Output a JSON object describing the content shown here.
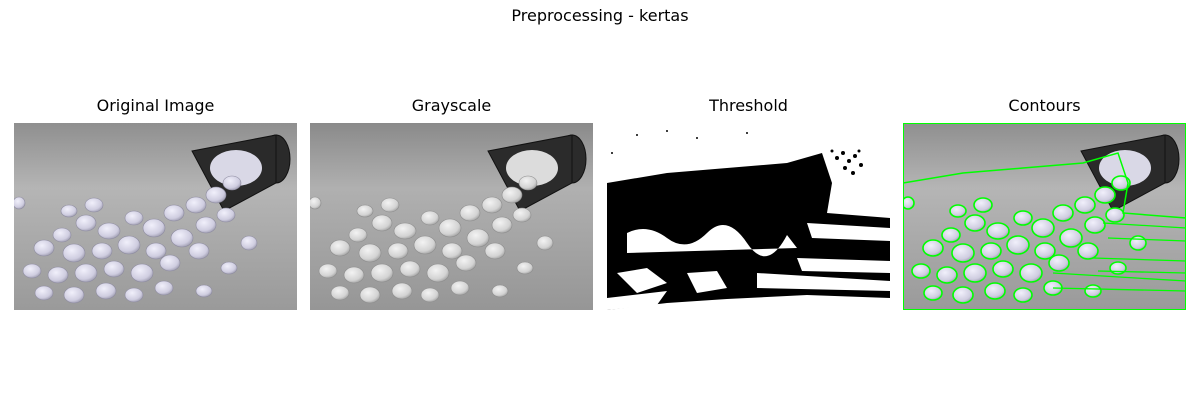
{
  "figure": {
    "title": "Preprocessing - kertas"
  },
  "panels": [
    {
      "title": "Original Image"
    },
    {
      "title": "Grayscale"
    },
    {
      "title": "Threshold"
    },
    {
      "title": "Contours"
    }
  ],
  "colors": {
    "contour": "#00ff00"
  }
}
